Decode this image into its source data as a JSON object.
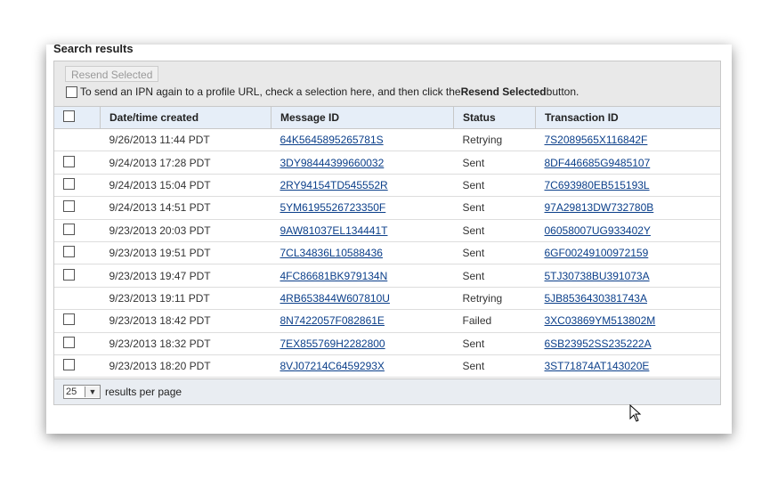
{
  "title": "Search results",
  "toolbar": {
    "resend_label": "Resend Selected",
    "info_prefix": "To send an IPN again to a profile URL, check a selection here, and then click the ",
    "info_bold": "Resend Selected",
    "info_suffix": " button."
  },
  "table": {
    "headers": [
      "Date/time created",
      "Message ID",
      "Status",
      "Transaction ID"
    ],
    "rows": [
      {
        "checkbox": false,
        "date": "9/26/2013 11:44 PDT",
        "message_id": "64K5645895265781S",
        "status": "Retrying",
        "transaction_id": "7S2089565X116842F"
      },
      {
        "checkbox": true,
        "date": "9/24/2013 17:28 PDT",
        "message_id": "3DY98444399660032",
        "status": "Sent",
        "transaction_id": "8DF446685G9485107"
      },
      {
        "checkbox": true,
        "date": "9/24/2013 15:04 PDT",
        "message_id": "2RY94154TD545552R",
        "status": "Sent",
        "transaction_id": "7C693980EB515193L"
      },
      {
        "checkbox": true,
        "date": "9/24/2013 14:51 PDT",
        "message_id": "5YM6195526723350F",
        "status": "Sent",
        "transaction_id": "97A29813DW732780B"
      },
      {
        "checkbox": true,
        "date": "9/23/2013 20:03 PDT",
        "message_id": "9AW81037EL134441T",
        "status": "Sent",
        "transaction_id": "06058007UG933402Y"
      },
      {
        "checkbox": true,
        "date": "9/23/2013 19:51 PDT",
        "message_id": "7CL34836L10588436",
        "status": "Sent",
        "transaction_id": "6GF00249100972159"
      },
      {
        "checkbox": true,
        "date": "9/23/2013 19:47 PDT",
        "message_id": "4FC86681BK979134N",
        "status": "Sent",
        "transaction_id": "5TJ30738BU391073A"
      },
      {
        "checkbox": false,
        "date": "9/23/2013 19:11 PDT",
        "message_id": "4RB653844W607810U",
        "status": "Retrying",
        "transaction_id": "5JB8536430381743A"
      },
      {
        "checkbox": true,
        "date": "9/23/2013 18:42 PDT",
        "message_id": "8N7422057F082861E",
        "status": "Failed",
        "transaction_id": "3XC03869YM513802M"
      },
      {
        "checkbox": true,
        "date": "9/23/2013 18:32 PDT",
        "message_id": "7EX855769H2282800",
        "status": "Sent",
        "transaction_id": "6SB23952SS235222A"
      },
      {
        "checkbox": true,
        "date": "9/23/2013 18:20 PDT",
        "message_id": "8VJ07214C6459293X",
        "status": "Sent",
        "transaction_id": "3ST71874AT143020E"
      }
    ]
  },
  "footer": {
    "per_page_value": "25",
    "per_page_label": "results per page"
  },
  "colors": {
    "link": "#0b3f8a",
    "header_bg": "#e6eef8",
    "toolbar_bg": "#e9e9e9"
  }
}
